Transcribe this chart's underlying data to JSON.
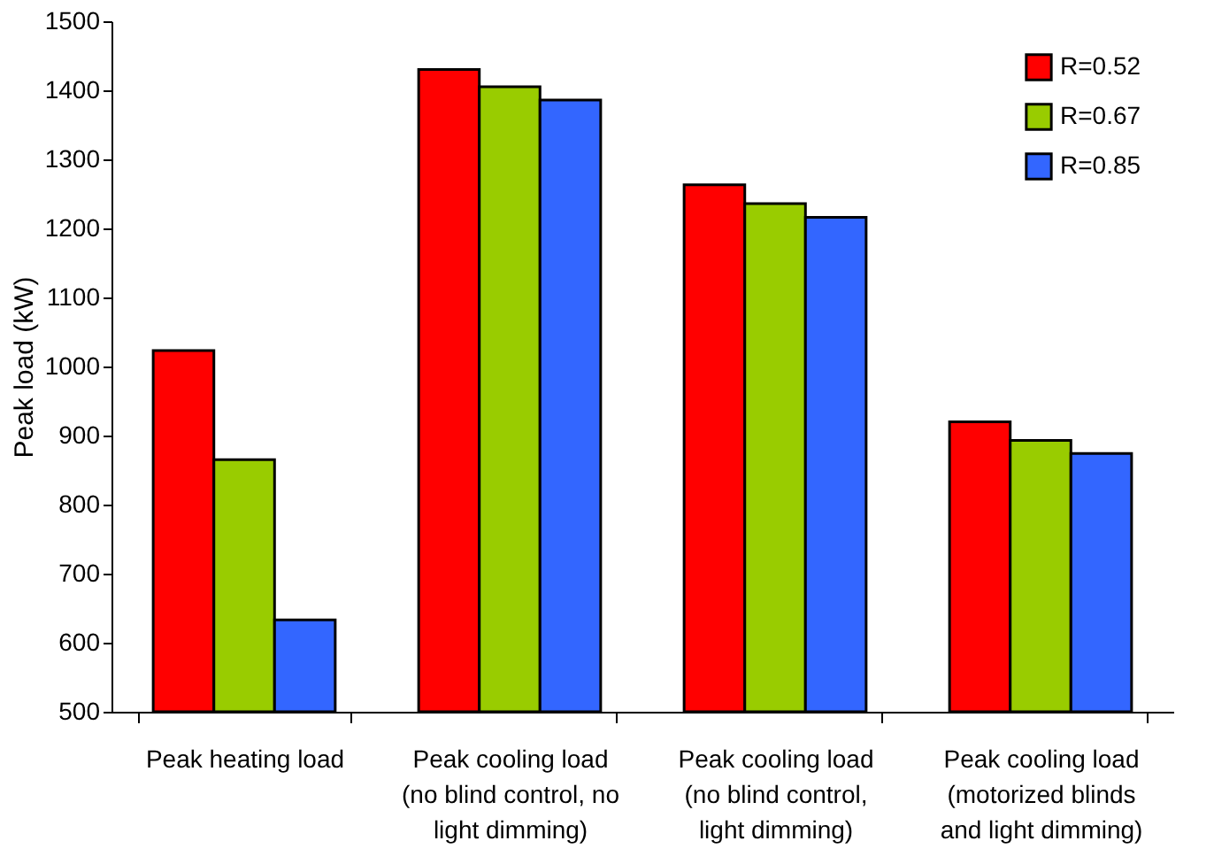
{
  "chart_data": {
    "type": "bar",
    "ylabel": "Peak load (kW)",
    "categories": [
      "Peak heating load",
      "Peak cooling load\n(no blind control, no\nlight dimming)",
      "Peak cooling load\n(no blind control,\nlight dimming)",
      "Peak cooling load\n(motorized blinds\nand light dimming)"
    ],
    "series": [
      {
        "name": "R=0.52",
        "color": "#ff0000",
        "values": [
          1023,
          1430,
          1263,
          920
        ]
      },
      {
        "name": "R=0.67",
        "color": "#99cc00",
        "values": [
          865,
          1405,
          1236,
          893
        ]
      },
      {
        "name": "R=0.85",
        "color": "#3366ff",
        "values": [
          633,
          1386,
          1216,
          874
        ]
      }
    ],
    "ylim": [
      500,
      1500
    ],
    "yticks": [
      500,
      600,
      700,
      800,
      900,
      1000,
      1100,
      1200,
      1300,
      1400,
      1500
    ],
    "grid": false,
    "legend": "top right"
  }
}
